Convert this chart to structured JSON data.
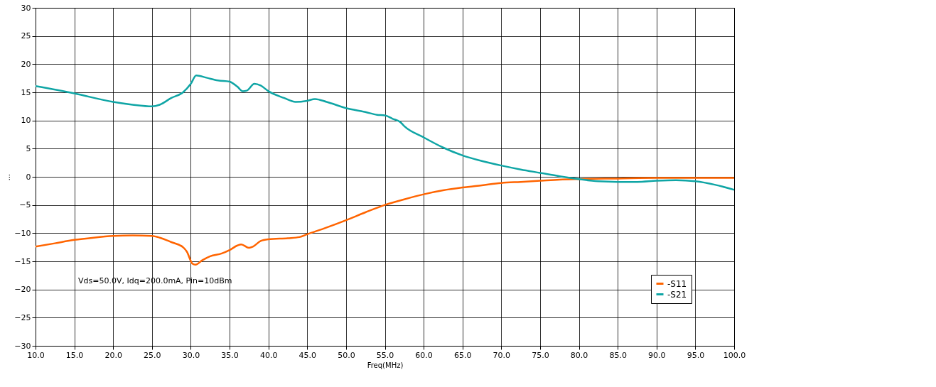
{
  "chart_data": {
    "type": "line",
    "xlabel": "Freq(MHz)",
    "ylabel": "...",
    "xlim": [
      10,
      100
    ],
    "ylim": [
      -30,
      30
    ],
    "xticks": [
      {
        "value": 10,
        "label": "10.0"
      },
      {
        "value": 15,
        "label": "15.0"
      },
      {
        "value": 20,
        "label": "20.0"
      },
      {
        "value": 25,
        "label": "25.0"
      },
      {
        "value": 30,
        "label": "30.0"
      },
      {
        "value": 35,
        "label": "35.0"
      },
      {
        "value": 40,
        "label": "40.0"
      },
      {
        "value": 45,
        "label": "45.0"
      },
      {
        "value": 50,
        "label": "50.0"
      },
      {
        "value": 55,
        "label": "55.0"
      },
      {
        "value": 60,
        "label": "60.0"
      },
      {
        "value": 65,
        "label": "65.0"
      },
      {
        "value": 70,
        "label": "70.0"
      },
      {
        "value": 75,
        "label": "75.0"
      },
      {
        "value": 80,
        "label": "80.0"
      },
      {
        "value": 85,
        "label": "85.0"
      },
      {
        "value": 90,
        "label": "90.0"
      },
      {
        "value": 95,
        "label": "95.0"
      },
      {
        "value": 100,
        "label": "100.0"
      }
    ],
    "yticks": [
      -30,
      -25,
      -20,
      -15,
      -10,
      -5,
      0,
      5,
      10,
      15,
      20,
      25,
      30
    ],
    "grid": true,
    "legend": "bottom right",
    "marker": "none",
    "line_style": "solid",
    "annotations": [
      "Vds=50.0V, Idq=200.0mA, Pin=10dBm"
    ],
    "series": [
      {
        "name": "-S11",
        "color": "#ff6400",
        "x": [
          10,
          12.5,
          15,
          17.5,
          20,
          22.5,
          25,
          26,
          27.5,
          29,
          29.5,
          30.2,
          30.6,
          31.5,
          32.5,
          34,
          35,
          36,
          36.5,
          37.5,
          38,
          39,
          40,
          42.5,
          44,
          45,
          47.5,
          50,
          52.5,
          55,
          57.5,
          60,
          62.5,
          65,
          67.5,
          70,
          72.5,
          75,
          77.5,
          80,
          85,
          90,
          95,
          100
        ],
        "values": [
          -12.4,
          -11.8,
          -11.2,
          -10.8,
          -10.5,
          -10.4,
          -10.5,
          -10.8,
          -11.6,
          -12.5,
          -13.3,
          -15.4,
          -15.6,
          -14.8,
          -14.1,
          -13.6,
          -13.0,
          -12.2,
          -12.0,
          -12.6,
          -12.4,
          -11.4,
          -11.1,
          -10.9,
          -10.7,
          -10.2,
          -9.0,
          -7.7,
          -6.3,
          -5.0,
          -4.0,
          -3.1,
          -2.4,
          -1.9,
          -1.5,
          -1.1,
          -0.9,
          -0.7,
          -0.5,
          -0.4,
          -0.3,
          -0.2,
          -0.2,
          -0.2
        ]
      },
      {
        "name": "-S21",
        "color": "#0fa5a5",
        "x": [
          10,
          15,
          20,
          22.5,
          25,
          26,
          27.5,
          29,
          30,
          30.7,
          32,
          33.5,
          35,
          36,
          36.7,
          37.2,
          38.2,
          39,
          40,
          42,
          43.5,
          45,
          46,
          47.5,
          50,
          52.5,
          54,
          55,
          56,
          57,
          57.5,
          60,
          62.5,
          65,
          67.5,
          70,
          72.5,
          75,
          77.5,
          80,
          82.5,
          85,
          87.5,
          90,
          92.5,
          95,
          97.5,
          100
        ],
        "values": [
          16.1,
          14.8,
          13.3,
          12.8,
          12.5,
          12.8,
          14.0,
          15.0,
          16.5,
          18.0,
          17.6,
          17.1,
          16.9,
          16.0,
          15.2,
          15.3,
          16.5,
          16.2,
          15.2,
          14.0,
          13.3,
          13.5,
          13.8,
          13.3,
          12.2,
          11.5,
          11.0,
          10.9,
          10.3,
          9.7,
          9.0,
          7.0,
          5.2,
          3.8,
          2.8,
          2.0,
          1.3,
          0.7,
          0.1,
          -0.4,
          -0.8,
          -0.9,
          -0.9,
          -0.7,
          -0.6,
          -0.8,
          -1.4,
          -2.3
        ]
      }
    ]
  }
}
